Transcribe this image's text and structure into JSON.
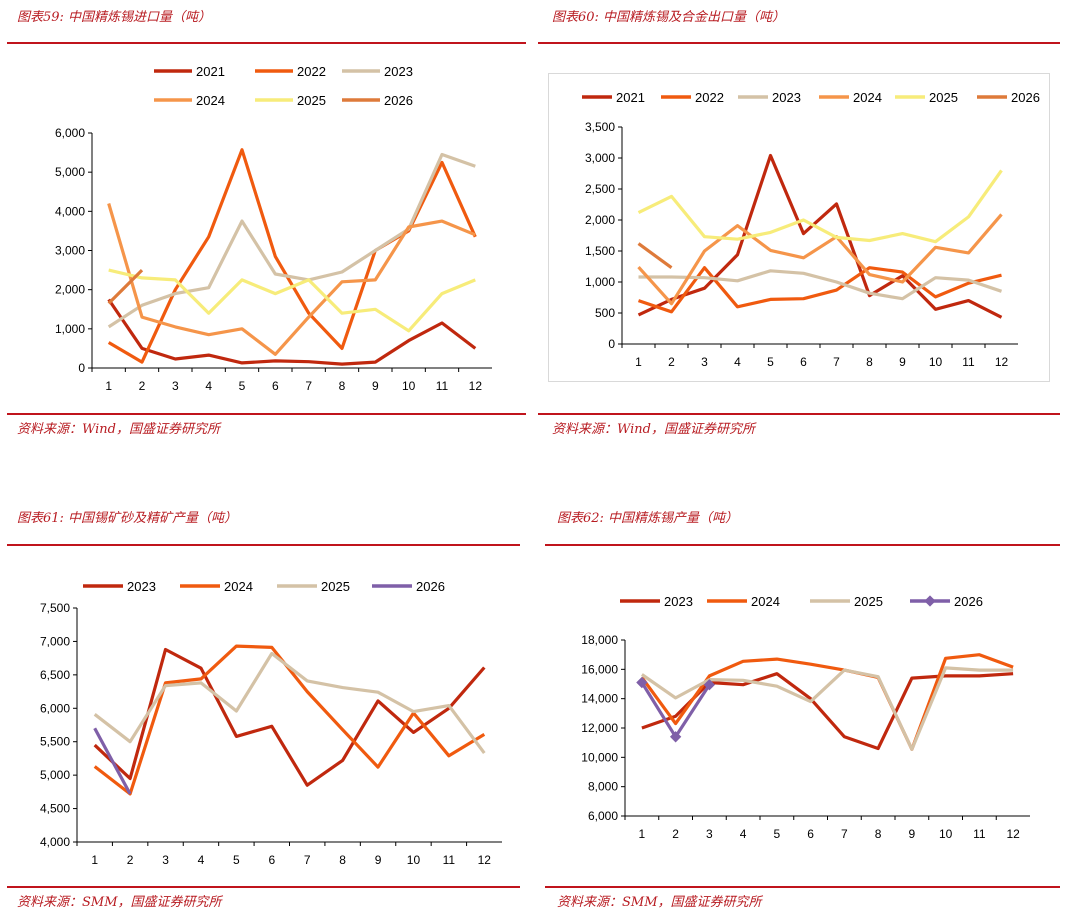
{
  "panels": [
    {
      "title": "图表59:  中国精炼锡进口量（吨）",
      "source": "资料来源：Wind，国盛证券研究所"
    },
    {
      "title": "图表60:  中国精炼锡及合金出口量（吨）",
      "source": "资料来源：Wind，国盛证券研究所"
    },
    {
      "title": "图表61:  中国锡矿砂及精矿产量（吨）",
      "source": "资料来源：SMM，国盛证券研究所"
    },
    {
      "title": "图表62:  中国精炼锡产量（吨）",
      "source": "资料来源：SMM，国盛证券研究所"
    }
  ],
  "chart_data": [
    {
      "type": "line",
      "x": [
        1,
        2,
        3,
        4,
        5,
        6,
        7,
        8,
        9,
        10,
        11,
        12
      ],
      "ylim": [
        0,
        6000
      ],
      "yticks": [
        "0",
        "1,000",
        "2,000",
        "3,000",
        "4,000",
        "5,000",
        "6,000"
      ],
      "legend_position": "top",
      "series": [
        {
          "name": "2021",
          "color": "#c0280e",
          "values": [
            1750,
            500,
            230,
            330,
            130,
            180,
            160,
            100,
            150,
            700,
            1150,
            500
          ]
        },
        {
          "name": "2022",
          "color": "#f05a0f",
          "values": [
            650,
            150,
            2000,
            3350,
            5570,
            2850,
            1400,
            500,
            3000,
            3500,
            5250,
            3350
          ]
        },
        {
          "name": "2023",
          "color": "#d4c2a6",
          "values": [
            1050,
            1600,
            1900,
            2050,
            3750,
            2400,
            2250,
            2450,
            3000,
            3550,
            5450,
            5150
          ]
        },
        {
          "name": "2024",
          "color": "#f5954a",
          "values": [
            4200,
            1300,
            1050,
            850,
            1000,
            350,
            1300,
            2200,
            2250,
            3600,
            3750,
            3400
          ]
        },
        {
          "name": "2025",
          "color": "#f7ec7a",
          "values": [
            2500,
            2300,
            2250,
            1400,
            2250,
            1900,
            2250,
            1400,
            1500,
            950,
            1900,
            2250
          ]
        },
        {
          "name": "2026",
          "color": "#de7a3a",
          "values": [
            1650,
            2500,
            null,
            null,
            null,
            null,
            null,
            null,
            null,
            null,
            null,
            null
          ]
        }
      ]
    },
    {
      "type": "line",
      "x": [
        1,
        2,
        3,
        4,
        5,
        6,
        7,
        8,
        9,
        10,
        11,
        12
      ],
      "ylim": [
        0,
        3500
      ],
      "yticks": [
        "0",
        "500",
        "1,000",
        "1,500",
        "2,000",
        "2,500",
        "3,000",
        "3,500"
      ],
      "legend_position": "top",
      "series": [
        {
          "name": "2021",
          "color": "#c0280e",
          "values": [
            470,
            720,
            900,
            1440,
            3040,
            1780,
            2260,
            780,
            1100,
            560,
            700,
            430
          ]
        },
        {
          "name": "2022",
          "color": "#f05a0f",
          "values": [
            700,
            520,
            1230,
            600,
            720,
            730,
            870,
            1230,
            1160,
            760,
            980,
            1110
          ]
        },
        {
          "name": "2023",
          "color": "#d4c2a6",
          "values": [
            1080,
            1080,
            1070,
            1020,
            1180,
            1140,
            1000,
            820,
            730,
            1070,
            1030,
            850
          ]
        },
        {
          "name": "2024",
          "color": "#f5954a",
          "values": [
            1240,
            650,
            1500,
            1910,
            1510,
            1390,
            1730,
            1120,
            1000,
            1560,
            1470,
            2090
          ]
        },
        {
          "name": "2025",
          "color": "#f7ec7a",
          "values": [
            2120,
            2380,
            1730,
            1690,
            1800,
            2000,
            1720,
            1670,
            1780,
            1650,
            2050,
            2800
          ]
        },
        {
          "name": "2026",
          "color": "#de7a3a",
          "values": [
            1620,
            1230,
            null,
            null,
            null,
            null,
            null,
            null,
            null,
            null,
            null,
            null
          ]
        }
      ]
    },
    {
      "type": "line",
      "x": [
        1,
        2,
        3,
        4,
        5,
        6,
        7,
        8,
        9,
        10,
        11,
        12
      ],
      "ylim": [
        4000,
        7500
      ],
      "yticks": [
        "4,000",
        "4,500",
        "5,000",
        "5,500",
        "6,000",
        "6,500",
        "7,000",
        "7,500"
      ],
      "legend_position": "top",
      "series": [
        {
          "name": "2023",
          "color": "#c0280e",
          "values": [
            5450,
            4950,
            6880,
            6600,
            5580,
            5730,
            4850,
            5220,
            6110,
            5640,
            6000,
            6610
          ]
        },
        {
          "name": "2024",
          "color": "#f05a0f",
          "values": [
            5130,
            4720,
            6380,
            6440,
            6930,
            6910,
            6250,
            5680,
            5120,
            5930,
            5290,
            5610
          ]
        },
        {
          "name": "2025",
          "color": "#d4c2a6",
          "values": [
            5910,
            5500,
            6340,
            6380,
            5960,
            6820,
            6410,
            6310,
            6240,
            5950,
            6040,
            5330
          ]
        },
        {
          "name": "2026",
          "color": "#7f5fa8",
          "values": [
            5700,
            4720,
            null,
            null,
            null,
            null,
            null,
            null,
            null,
            null,
            null,
            null
          ]
        }
      ]
    },
    {
      "type": "line",
      "x": [
        1,
        2,
        3,
        4,
        5,
        6,
        7,
        8,
        9,
        10,
        11,
        12
      ],
      "ylim": [
        6000,
        18000
      ],
      "yticks": [
        "6,000",
        "8,000",
        "10,000",
        "12,000",
        "14,000",
        "16,000",
        "18,000"
      ],
      "legend_position": "top",
      "series": [
        {
          "name": "2023",
          "color": "#c0280e",
          "values": [
            12000,
            12800,
            15100,
            14950,
            15700,
            14000,
            11400,
            10600,
            15400,
            15550,
            15550,
            15700
          ]
        },
        {
          "name": "2024",
          "color": "#f05a0f",
          "values": [
            15450,
            12300,
            15550,
            16550,
            16700,
            16350,
            15950,
            15450,
            10550,
            16750,
            17000,
            16150
          ]
        },
        {
          "name": "2025",
          "color": "#d4c2a6",
          "values": [
            15650,
            14050,
            15300,
            15250,
            14850,
            13800,
            15950,
            15500,
            10550,
            16100,
            15950,
            15950
          ]
        },
        {
          "name": "2026",
          "color": "#7f5fa8",
          "values": [
            15100,
            11400,
            14950,
            null,
            null,
            null,
            null,
            null,
            null,
            null,
            null,
            null
          ]
        }
      ]
    }
  ]
}
